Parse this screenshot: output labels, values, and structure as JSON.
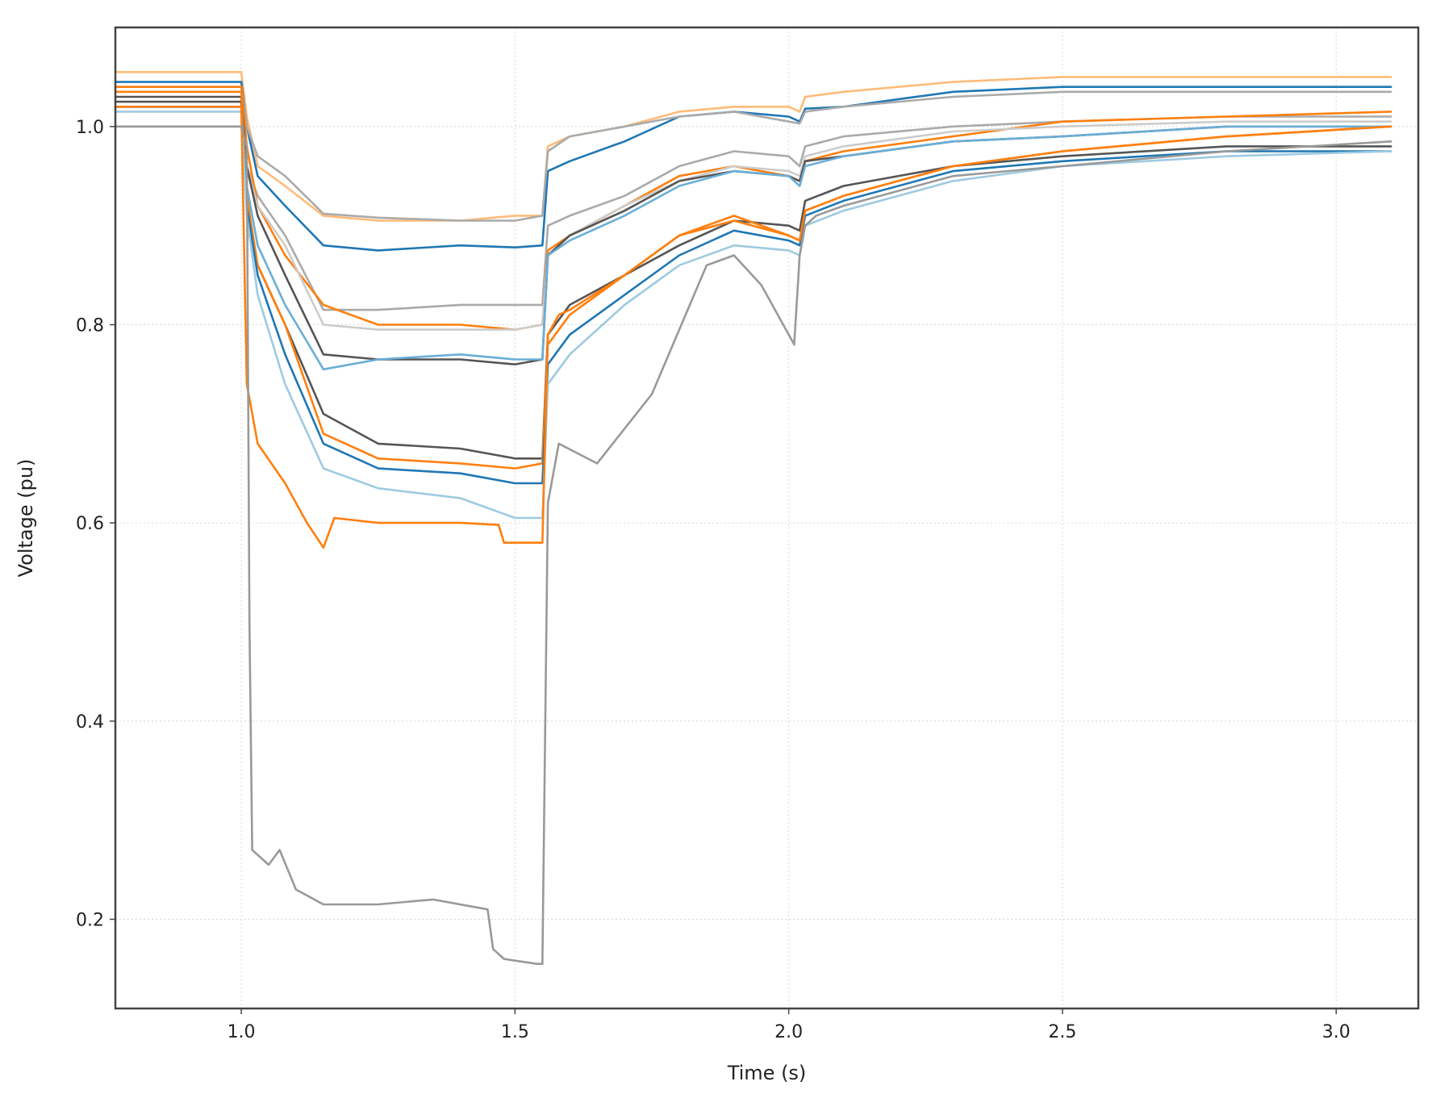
{
  "chart_data": {
    "type": "line",
    "xlabel": "Time (s)",
    "ylabel": "Voltage (pu)",
    "xlim": [
      0.77,
      3.15
    ],
    "ylim": [
      0.11,
      1.1
    ],
    "xticks": [
      1.0,
      1.5,
      2.0,
      2.5,
      3.0
    ],
    "yticks": [
      0.2,
      0.4,
      0.6,
      0.8,
      1.0
    ],
    "xtick_labels": [
      "1.0",
      "1.5",
      "2.0",
      "2.5",
      "3.0"
    ],
    "ytick_labels": [
      "0.2",
      "0.4",
      "0.6",
      "0.8",
      "1.0"
    ],
    "grid": true,
    "series": [
      {
        "color": "#ffbb78",
        "x": [
          0.77,
          1.0,
          1.01,
          1.03,
          1.08,
          1.15,
          1.25,
          1.4,
          1.5,
          1.55,
          1.56,
          1.6,
          1.7,
          1.8,
          1.9,
          2.0,
          2.02,
          2.03,
          2.1,
          2.3,
          2.5,
          2.8,
          3.1
        ],
        "y": [
          1.055,
          1.055,
          1.01,
          0.96,
          0.94,
          0.91,
          0.905,
          0.905,
          0.91,
          0.91,
          0.98,
          0.99,
          1.0,
          1.015,
          1.02,
          1.02,
          1.015,
          1.03,
          1.035,
          1.045,
          1.05,
          1.05,
          1.05
        ]
      },
      {
        "color": "#1f77b4",
        "x": [
          0.77,
          1.0,
          1.01,
          1.03,
          1.08,
          1.15,
          1.25,
          1.4,
          1.5,
          1.55,
          1.56,
          1.6,
          1.7,
          1.8,
          1.9,
          2.0,
          2.02,
          2.03,
          2.1,
          2.3,
          2.5,
          2.8,
          3.1
        ],
        "y": [
          1.045,
          1.045,
          1.0,
          0.95,
          0.92,
          0.88,
          0.875,
          0.88,
          0.878,
          0.88,
          0.955,
          0.965,
          0.985,
          1.01,
          1.015,
          1.01,
          1.005,
          1.018,
          1.02,
          1.035,
          1.04,
          1.04,
          1.04
        ]
      },
      {
        "color": "#aaaaaa",
        "x": [
          0.77,
          1.0,
          1.01,
          1.03,
          1.08,
          1.15,
          1.25,
          1.4,
          1.5,
          1.55,
          1.56,
          1.6,
          1.7,
          1.8,
          1.9,
          2.0,
          2.02,
          2.03,
          2.1,
          2.3,
          2.5,
          2.8,
          3.1
        ],
        "y": [
          1.04,
          1.04,
          1.0,
          0.97,
          0.95,
          0.912,
          0.908,
          0.905,
          0.905,
          0.91,
          0.975,
          0.99,
          1.0,
          1.01,
          1.015,
          1.005,
          1.003,
          1.015,
          1.02,
          1.03,
          1.035,
          1.035,
          1.035
        ]
      },
      {
        "color": "#aaaaaa",
        "x": [
          0.77,
          1.0,
          1.01,
          1.03,
          1.08,
          1.15,
          1.25,
          1.4,
          1.5,
          1.55,
          1.56,
          1.6,
          1.7,
          1.8,
          1.9,
          2.0,
          2.02,
          2.03,
          2.1,
          2.3,
          2.5,
          2.8,
          3.1
        ],
        "y": [
          1.0,
          1.0,
          0.96,
          0.93,
          0.89,
          0.815,
          0.815,
          0.82,
          0.82,
          0.82,
          0.9,
          0.91,
          0.93,
          0.96,
          0.975,
          0.97,
          0.96,
          0.98,
          0.99,
          1.0,
          1.005,
          1.01,
          1.01
        ]
      },
      {
        "color": "#ff7f0e",
        "x": [
          0.77,
          1.0,
          1.01,
          1.03,
          1.08,
          1.15,
          1.25,
          1.4,
          1.5,
          1.55,
          1.56,
          1.6,
          1.7,
          1.8,
          1.9,
          2.0,
          2.02,
          2.03,
          2.1,
          2.3,
          2.5,
          2.8,
          3.1
        ],
        "y": [
          1.04,
          1.04,
          0.98,
          0.92,
          0.87,
          0.82,
          0.8,
          0.8,
          0.795,
          0.8,
          0.875,
          0.89,
          0.92,
          0.95,
          0.96,
          0.95,
          0.945,
          0.965,
          0.975,
          0.99,
          1.005,
          1.01,
          1.015
        ]
      },
      {
        "color": "#cccccc",
        "x": [
          0.77,
          1.0,
          1.01,
          1.03,
          1.08,
          1.15,
          1.25,
          1.4,
          1.5,
          1.55,
          1.56,
          1.6,
          1.7,
          1.8,
          1.9,
          2.0,
          2.02,
          2.03,
          2.1,
          2.3,
          2.5,
          2.8,
          3.1
        ],
        "y": [
          1.02,
          1.02,
          0.96,
          0.92,
          0.88,
          0.8,
          0.795,
          0.795,
          0.795,
          0.8,
          0.87,
          0.89,
          0.92,
          0.945,
          0.96,
          0.955,
          0.95,
          0.97,
          0.98,
          0.995,
          1.0,
          1.005,
          1.005
        ]
      },
      {
        "color": "#555555",
        "x": [
          0.77,
          1.0,
          1.01,
          1.03,
          1.08,
          1.15,
          1.25,
          1.4,
          1.5,
          1.55,
          1.56,
          1.6,
          1.7,
          1.8,
          1.9,
          2.0,
          2.02,
          2.03,
          2.1,
          2.3,
          2.5,
          2.8,
          3.1
        ],
        "y": [
          1.03,
          1.03,
          0.96,
          0.91,
          0.85,
          0.77,
          0.765,
          0.765,
          0.76,
          0.765,
          0.87,
          0.89,
          0.915,
          0.945,
          0.955,
          0.95,
          0.945,
          0.965,
          0.97,
          0.985,
          0.99,
          1.0,
          1.0
        ]
      },
      {
        "color": "#6aaed6",
        "x": [
          0.77,
          1.0,
          1.01,
          1.03,
          1.08,
          1.15,
          1.25,
          1.4,
          1.5,
          1.55,
          1.56,
          1.6,
          1.7,
          1.8,
          1.9,
          2.0,
          2.02,
          2.03,
          2.1,
          2.3,
          2.5,
          2.8,
          3.1
        ],
        "y": [
          1.02,
          1.02,
          0.94,
          0.88,
          0.82,
          0.755,
          0.765,
          0.77,
          0.765,
          0.765,
          0.87,
          0.885,
          0.91,
          0.94,
          0.955,
          0.95,
          0.94,
          0.96,
          0.97,
          0.985,
          0.99,
          1.0,
          1.0
        ]
      },
      {
        "color": "#555555",
        "x": [
          0.77,
          1.0,
          1.01,
          1.03,
          1.08,
          1.15,
          1.25,
          1.4,
          1.5,
          1.55,
          1.56,
          1.6,
          1.7,
          1.8,
          1.9,
          2.0,
          2.02,
          2.03,
          2.1,
          2.3,
          2.5,
          2.8,
          3.1
        ],
        "y": [
          1.025,
          1.025,
          0.92,
          0.86,
          0.8,
          0.71,
          0.68,
          0.675,
          0.665,
          0.665,
          0.79,
          0.82,
          0.85,
          0.88,
          0.905,
          0.9,
          0.895,
          0.925,
          0.94,
          0.96,
          0.97,
          0.98,
          0.98
        ]
      },
      {
        "color": "#ff7f0e",
        "x": [
          0.77,
          1.0,
          1.01,
          1.03,
          1.08,
          1.15,
          1.25,
          1.4,
          1.5,
          1.55,
          1.56,
          1.6,
          1.7,
          1.8,
          1.9,
          2.0,
          2.02,
          2.03,
          2.1,
          2.3,
          2.5,
          2.8,
          3.1
        ],
        "y": [
          1.035,
          1.035,
          0.93,
          0.86,
          0.8,
          0.69,
          0.665,
          0.66,
          0.655,
          0.66,
          0.78,
          0.81,
          0.85,
          0.89,
          0.91,
          0.89,
          0.885,
          0.915,
          0.93,
          0.96,
          0.975,
          0.99,
          1.0
        ]
      },
      {
        "color": "#1f77b4",
        "x": [
          0.77,
          1.0,
          1.01,
          1.03,
          1.08,
          1.15,
          1.25,
          1.4,
          1.5,
          1.55,
          1.56,
          1.6,
          1.7,
          1.8,
          1.9,
          2.0,
          2.02,
          2.03,
          2.1,
          2.3,
          2.5,
          2.8,
          3.1
        ],
        "y": [
          1.02,
          1.02,
          0.92,
          0.85,
          0.77,
          0.68,
          0.655,
          0.65,
          0.64,
          0.64,
          0.76,
          0.79,
          0.83,
          0.87,
          0.895,
          0.885,
          0.88,
          0.91,
          0.925,
          0.955,
          0.965,
          0.975,
          0.975
        ]
      },
      {
        "color": "#9ecae1",
        "x": [
          0.77,
          1.0,
          1.01,
          1.03,
          1.08,
          1.15,
          1.25,
          1.4,
          1.5,
          1.55,
          1.56,
          1.6,
          1.7,
          1.8,
          1.9,
          2.0,
          2.02,
          2.03,
          2.1,
          2.3,
          2.5,
          2.8,
          3.1
        ],
        "y": [
          1.015,
          1.015,
          0.91,
          0.83,
          0.74,
          0.655,
          0.635,
          0.625,
          0.605,
          0.605,
          0.74,
          0.77,
          0.82,
          0.86,
          0.88,
          0.875,
          0.87,
          0.9,
          0.915,
          0.945,
          0.96,
          0.97,
          0.975
        ]
      },
      {
        "color": "#ff7f0e",
        "x": [
          0.77,
          1.0,
          1.01,
          1.03,
          1.08,
          1.12,
          1.15,
          1.17,
          1.25,
          1.4,
          1.47,
          1.48,
          1.55,
          1.56,
          1.58,
          1.6,
          1.7,
          1.8,
          1.9,
          2.0,
          2.02,
          2.03,
          2.1,
          2.3,
          2.5,
          2.8,
          3.1
        ],
        "y": [
          1.02,
          1.02,
          0.74,
          0.68,
          0.64,
          0.6,
          0.575,
          0.605,
          0.6,
          0.6,
          0.598,
          0.58,
          0.58,
          0.79,
          0.81,
          0.815,
          0.85,
          0.89,
          0.905,
          0.89,
          0.885,
          0.915,
          0.93,
          0.96,
          0.975,
          0.99,
          1.0
        ]
      },
      {
        "color": "#999999",
        "x": [
          0.77,
          1.0,
          1.01,
          1.015,
          1.02,
          1.05,
          1.07,
          1.1,
          1.15,
          1.25,
          1.35,
          1.45,
          1.46,
          1.48,
          1.54,
          1.55,
          1.56,
          1.58,
          1.65,
          1.75,
          1.85,
          1.9,
          1.95,
          2.0,
          2.01,
          2.02,
          2.03,
          2.05,
          2.1,
          2.3,
          2.5,
          2.8,
          3.1
        ],
        "y": [
          1.0,
          1.0,
          0.98,
          0.5,
          0.27,
          0.255,
          0.27,
          0.23,
          0.215,
          0.215,
          0.22,
          0.21,
          0.17,
          0.16,
          0.155,
          0.155,
          0.62,
          0.68,
          0.66,
          0.73,
          0.86,
          0.87,
          0.84,
          0.79,
          0.78,
          0.87,
          0.9,
          0.91,
          0.92,
          0.95,
          0.96,
          0.975,
          0.985
        ]
      }
    ]
  }
}
